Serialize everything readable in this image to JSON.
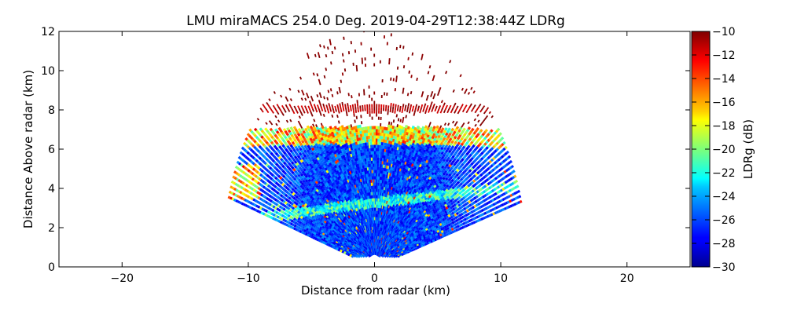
{
  "chart_data": {
    "type": "heatmap",
    "title": "LMU miraMACS 254.0 Deg. 2019-04-29T12:38:44Z  LDRg",
    "xlabel": "Distance from radar (km)",
    "ylabel": "Distance Above radar  (km)",
    "xlim": [
      -25,
      25
    ],
    "ylim": [
      0,
      12
    ],
    "xticks": [
      "−20",
      "−10",
      "0",
      "10",
      "20"
    ],
    "xtick_values": [
      -20,
      -10,
      0,
      10,
      20
    ],
    "yticks": [
      "0",
      "2",
      "4",
      "6",
      "8",
      "10",
      "12"
    ],
    "ytick_values": [
      0,
      2,
      4,
      6,
      8,
      10,
      12
    ],
    "colorbar": {
      "label": "LDRg (dB)",
      "range": [
        -30,
        -10
      ],
      "colormap": "jet",
      "ticks": [
        "−30",
        "−28",
        "−26",
        "−24",
        "−22",
        "−20",
        "−18",
        "−16",
        "−14",
        "−12",
        "−10"
      ],
      "tick_values": [
        -30,
        -28,
        -26,
        -24,
        -22,
        -20,
        -18,
        -16,
        -14,
        -12,
        -10
      ]
    },
    "scan": {
      "elevation_range_deg": [
        16,
        164
      ],
      "max_range_km": 12,
      "melting_layer_km": 8.0,
      "cloud_top_km": 6.5,
      "cloud_base_km": 0.5
    }
  }
}
